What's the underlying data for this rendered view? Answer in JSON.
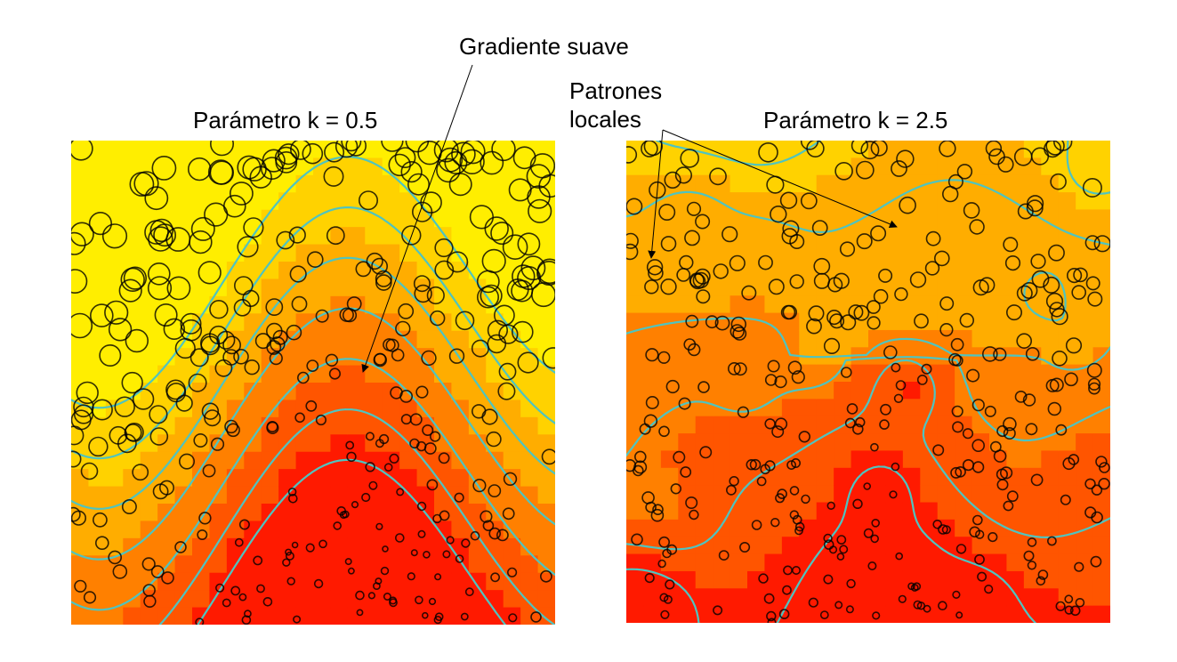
{
  "chart_data": [
    {
      "type": "heatmap",
      "title": "Parámetro k = 0.5",
      "xlabel": "",
      "ylabel": "",
      "grid": false,
      "colormap": [
        "#ff1a00",
        "#ff5500",
        "#ff8000",
        "#ffad00",
        "#ffd200",
        "#ffee00"
      ],
      "contour_color": "#4fc4c0",
      "circle_color": "#000000",
      "pattern": "smooth-gradient",
      "k": 0.5
    },
    {
      "type": "heatmap",
      "title": "Parámetro k = 2.5",
      "xlabel": "",
      "ylabel": "",
      "grid": false,
      "colormap": [
        "#ff1a00",
        "#ff5500",
        "#ff8000",
        "#ffad00",
        "#ffd200",
        "#ffee00"
      ],
      "contour_color": "#4fc4c0",
      "circle_color": "#000000",
      "pattern": "local-patterns",
      "k": 2.5
    }
  ],
  "annotations": {
    "smooth": "Gradiente suave",
    "local_line1": "Patrones",
    "local_line2": "locales"
  }
}
